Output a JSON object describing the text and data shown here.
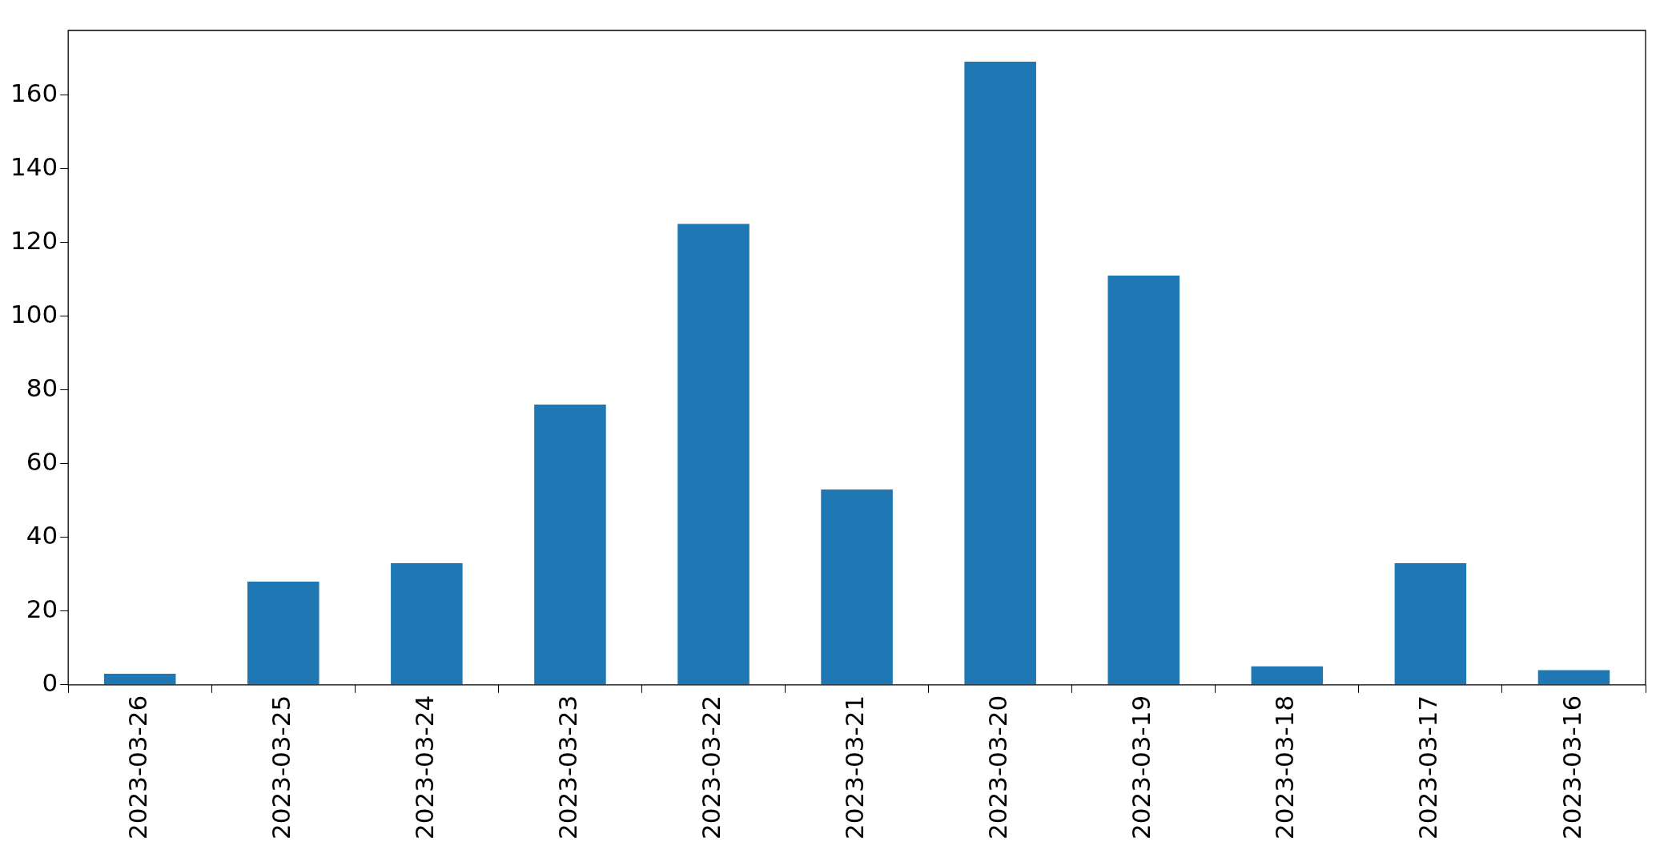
{
  "chart_data": {
    "type": "bar",
    "categories": [
      "2023-03-26",
      "2023-03-25",
      "2023-03-24",
      "2023-03-23",
      "2023-03-22",
      "2023-03-21",
      "2023-03-20",
      "2023-03-19",
      "2023-03-18",
      "2023-03-17",
      "2023-03-16"
    ],
    "values": [
      3,
      28,
      33,
      76,
      125,
      53,
      169,
      111,
      5,
      33,
      4
    ],
    "color": "#1f77b4",
    "ylim": [
      0,
      177.5
    ],
    "yticks": [
      0,
      20,
      40,
      60,
      80,
      100,
      120,
      140,
      160
    ]
  }
}
